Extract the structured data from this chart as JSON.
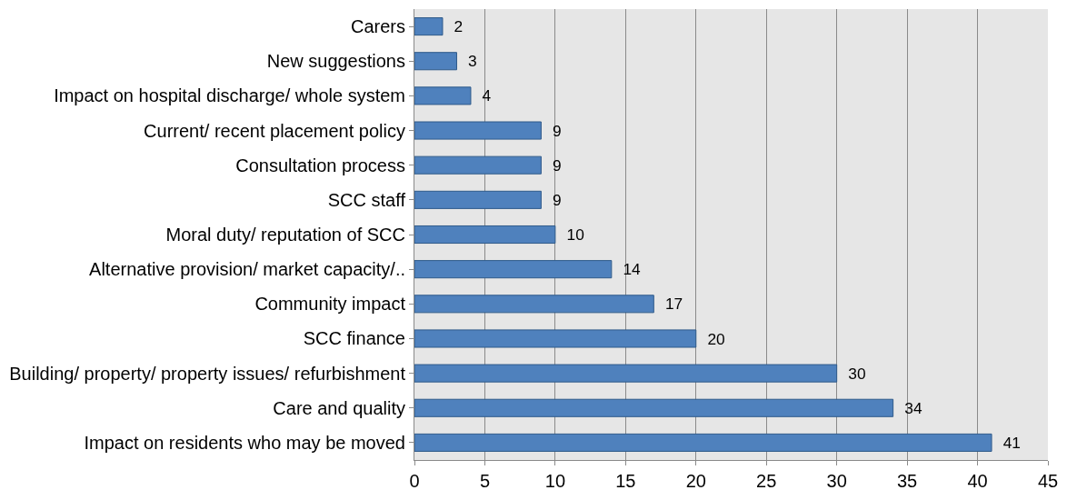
{
  "chart_data": {
    "type": "bar",
    "orientation": "horizontal",
    "categories": [
      "Carers",
      "New suggestions",
      "Impact on hospital discharge/ whole system",
      "Current/ recent placement policy",
      "Consultation process",
      "SCC staff",
      "Moral duty/ reputation of SCC",
      "Alternative provision/ market capacity/..",
      "Community impact",
      "SCC finance",
      "Building/ property/ property issues/ refurbishment",
      "Care and quality",
      "Impact on residents who may be moved"
    ],
    "values": [
      2,
      3,
      4,
      9,
      9,
      9,
      10,
      14,
      17,
      20,
      30,
      34,
      41
    ],
    "color": "#4f81bd",
    "data_labels": true,
    "xlim": [
      0,
      45
    ],
    "xticks": [
      0,
      5,
      10,
      15,
      20,
      25,
      30,
      35,
      40,
      45
    ],
    "grid": "x",
    "legend": false
  }
}
